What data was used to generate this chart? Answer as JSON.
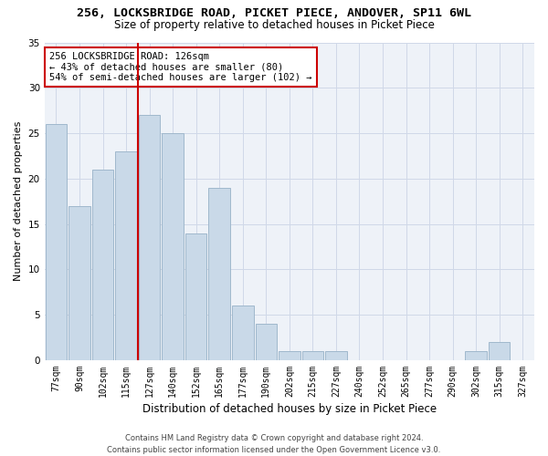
{
  "title": "256, LOCKSBRIDGE ROAD, PICKET PIECE, ANDOVER, SP11 6WL",
  "subtitle": "Size of property relative to detached houses in Picket Piece",
  "xlabel": "Distribution of detached houses by size in Picket Piece",
  "ylabel": "Number of detached properties",
  "bar_labels": [
    "77sqm",
    "90sqm",
    "102sqm",
    "115sqm",
    "127sqm",
    "140sqm",
    "152sqm",
    "165sqm",
    "177sqm",
    "190sqm",
    "202sqm",
    "215sqm",
    "227sqm",
    "240sqm",
    "252sqm",
    "265sqm",
    "277sqm",
    "290sqm",
    "302sqm",
    "315sqm",
    "327sqm"
  ],
  "bar_values": [
    26,
    17,
    21,
    23,
    27,
    25,
    14,
    19,
    6,
    4,
    1,
    1,
    1,
    0,
    0,
    0,
    0,
    0,
    1,
    2,
    0
  ],
  "bar_color": "#c9d9e8",
  "bar_edgecolor": "#a0b8cc",
  "vline_x": 3.5,
  "vline_color": "#cc0000",
  "annotation_text": "256 LOCKSBRIDGE ROAD: 126sqm\n← 43% of detached houses are smaller (80)\n54% of semi-detached houses are larger (102) →",
  "annotation_box_color": "#ffffff",
  "annotation_box_edgecolor": "#cc0000",
  "ylim": [
    0,
    35
  ],
  "yticks": [
    0,
    5,
    10,
    15,
    20,
    25,
    30,
    35
  ],
  "footer1": "Contains HM Land Registry data © Crown copyright and database right 2024.",
  "footer2": "Contains public sector information licensed under the Open Government Licence v3.0.",
  "grid_color": "#d0d8e8",
  "bg_color": "#eef2f8",
  "title_fontsize": 9.5,
  "subtitle_fontsize": 8.5,
  "ylabel_fontsize": 8,
  "xlabel_fontsize": 8.5,
  "tick_fontsize": 7,
  "annotation_fontsize": 7.5,
  "footer_fontsize": 6
}
